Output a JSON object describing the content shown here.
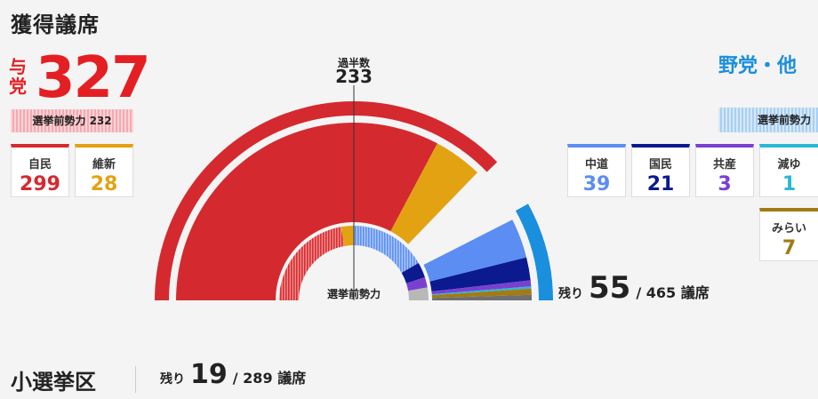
{
  "title": "獲得議席",
  "ruling": {
    "label": "与党",
    "total": "327",
    "prev_label": "選挙前勢力",
    "prev_value": "232",
    "color": "#e41f24",
    "parties": [
      {
        "name": "自民",
        "seats": "299",
        "color": "#d42a2f"
      },
      {
        "name": "維新",
        "seats": "28",
        "color": "#e3a212"
      }
    ]
  },
  "opposition": {
    "label": "野党・他",
    "prev_label": "選挙前勢力",
    "color": "#1a8fdd",
    "parties": [
      {
        "name": "中道",
        "seats": "39",
        "color": "#5b8df2"
      },
      {
        "name": "国民",
        "seats": "21",
        "color": "#0b1a8f"
      },
      {
        "name": "共産",
        "seats": "3",
        "color": "#7a3fd1"
      },
      {
        "name": "減ゆ",
        "seats": "1",
        "color": "#29b7d6"
      },
      {
        "name": "みらい",
        "seats": "7",
        "color": "#a17b13"
      }
    ]
  },
  "majority": {
    "label": "過半数",
    "value": "233"
  },
  "center_label": "選挙前勢力",
  "remaining": {
    "prefix": "残り",
    "value": "55",
    "sep": "/",
    "total": "465",
    "unit": "議席"
  },
  "district": {
    "title": "小選挙区",
    "prefix": "残り",
    "value": "19",
    "sep": "/",
    "total": "289",
    "unit": "議席"
  }
}
